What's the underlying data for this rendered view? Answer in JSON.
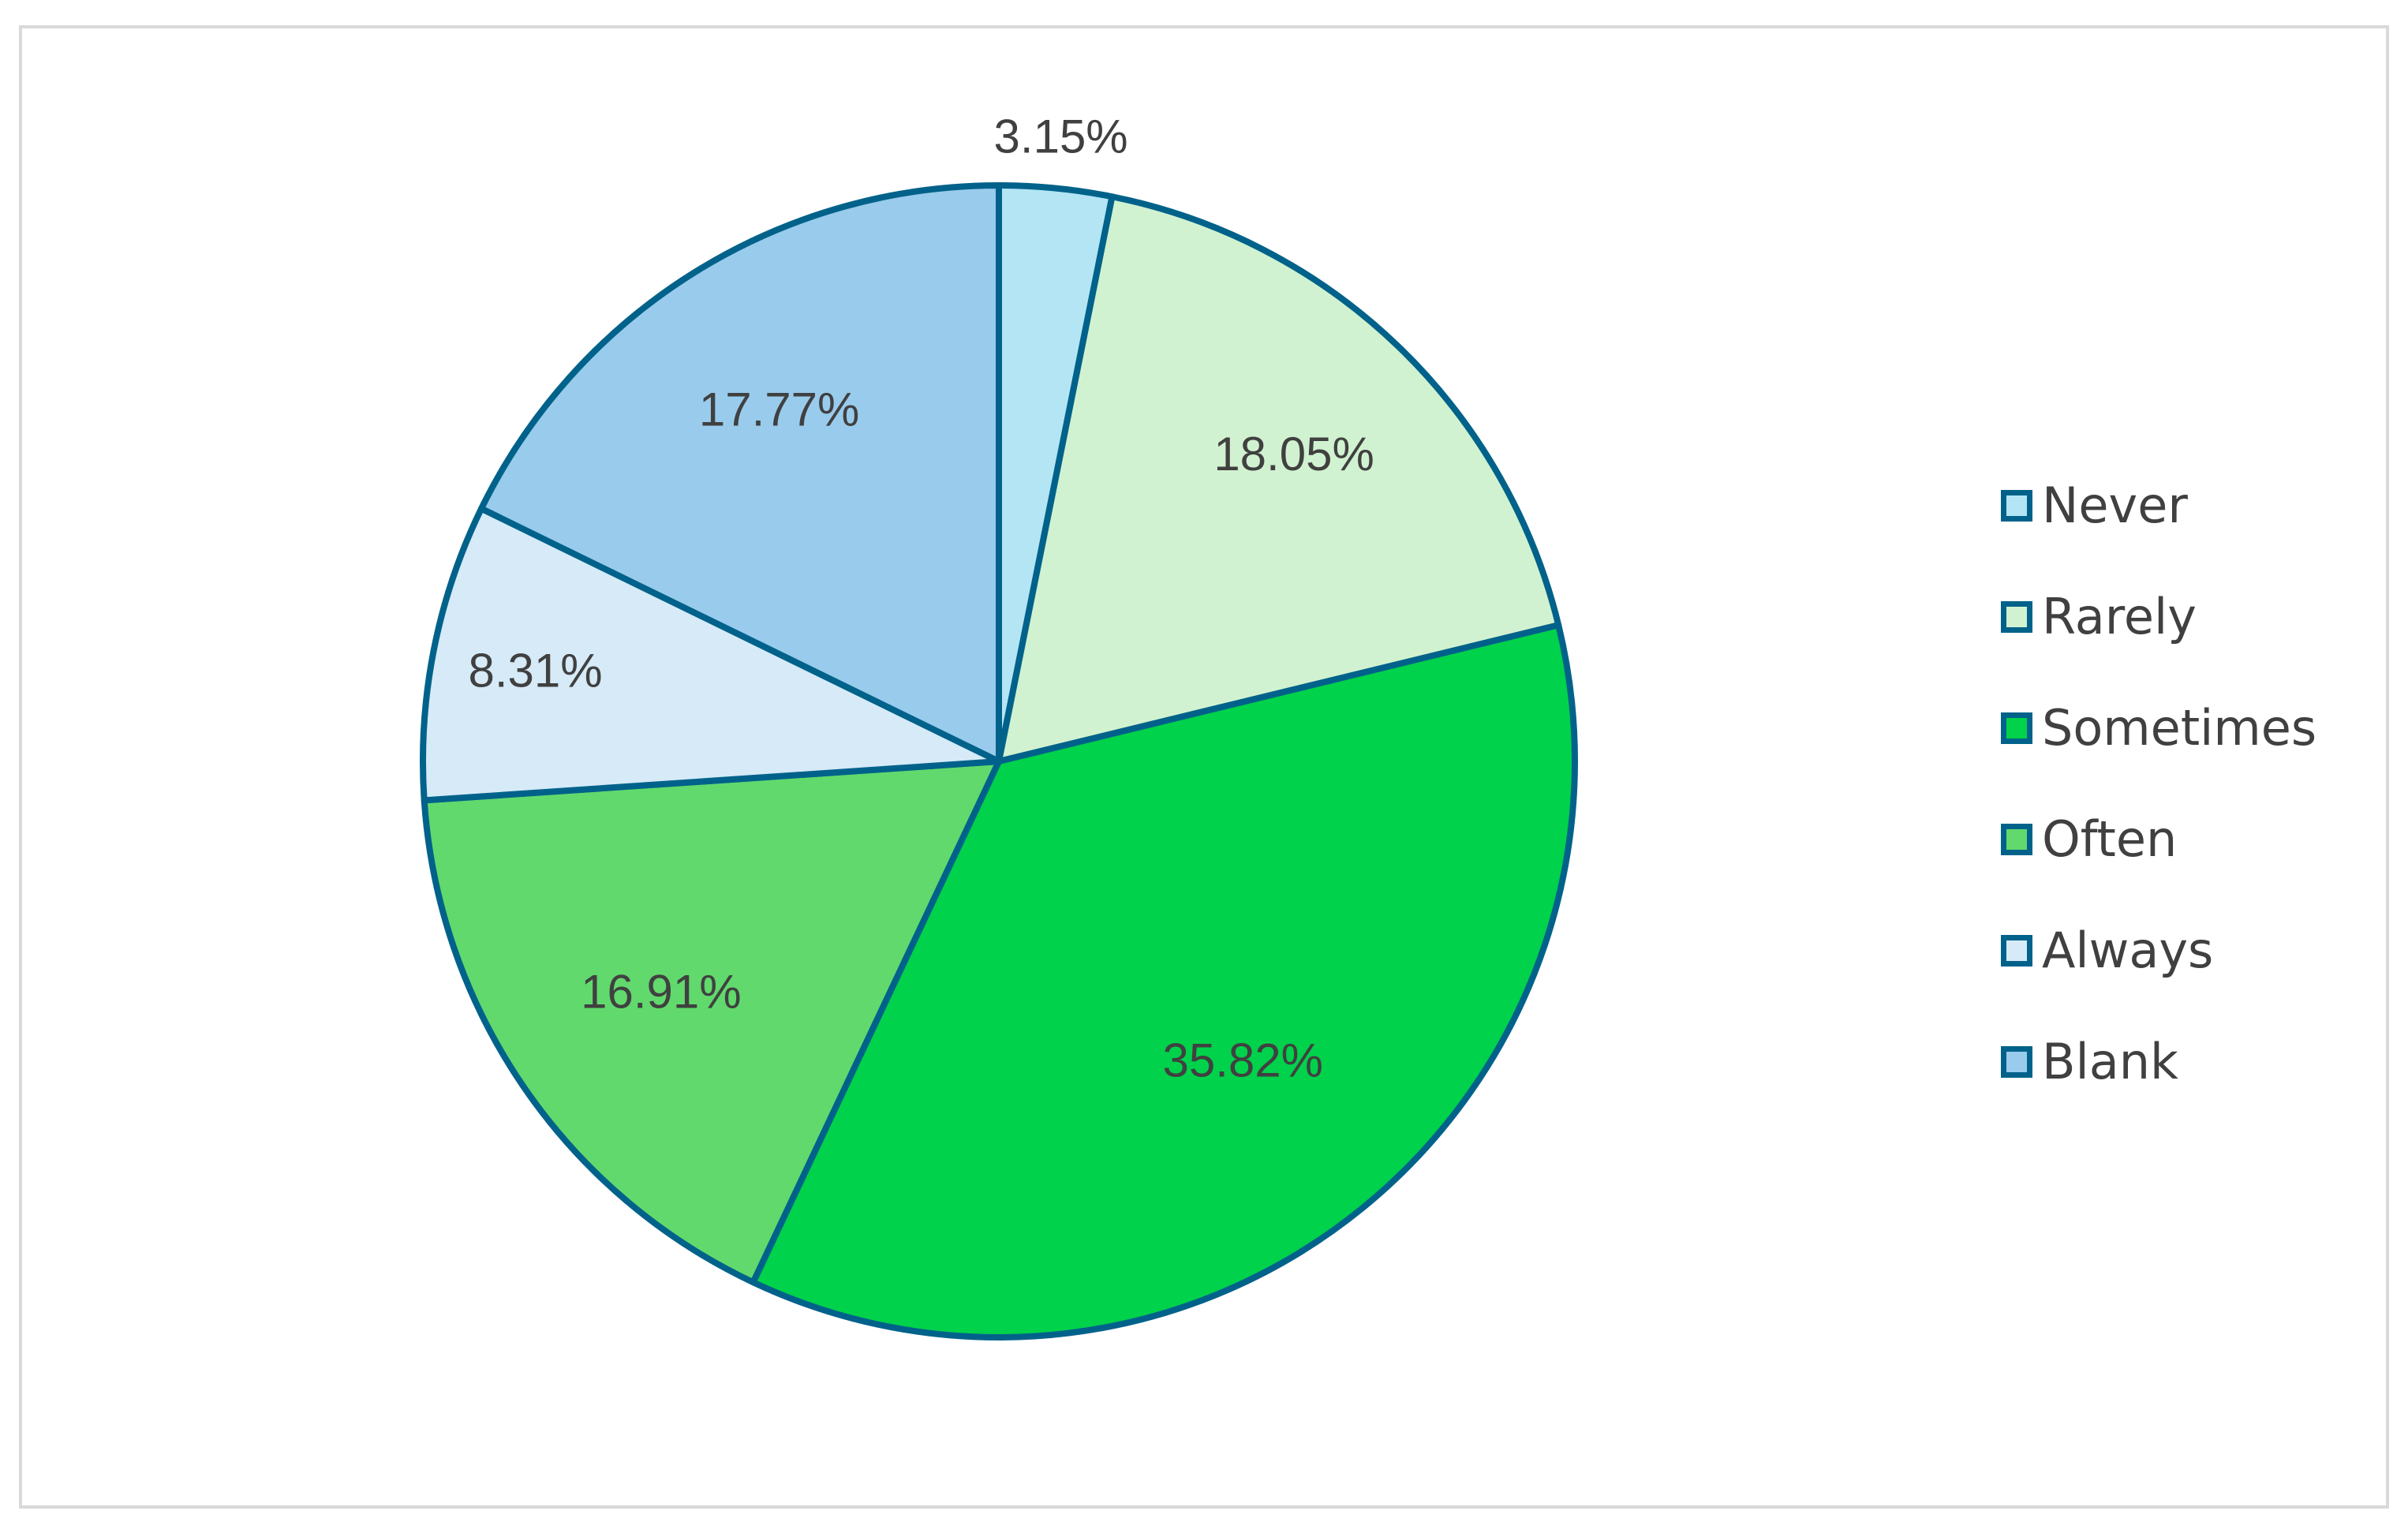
{
  "chart_data": {
    "type": "pie",
    "title": "",
    "categories": [
      "Never",
      "Rarely",
      "Sometimes",
      "Often",
      "Always",
      "Blank"
    ],
    "values": [
      3.15,
      18.05,
      35.82,
      16.91,
      8.31,
      17.77
    ],
    "value_labels": [
      "3.15%",
      "18.05%",
      "35.82%",
      "16.91%",
      "8.31%",
      "17.77%"
    ],
    "colors": [
      "#b3e5f5",
      "#d1f2d0",
      "#00d24b",
      "#61d96d",
      "#d6eaf8",
      "#99cbec"
    ],
    "slice_border_color": "#00628a",
    "start_angle": "12 o'clock, clockwise",
    "legend_position": "right",
    "data_labels": "percent"
  }
}
